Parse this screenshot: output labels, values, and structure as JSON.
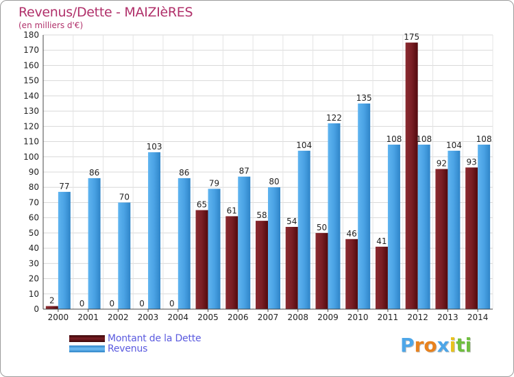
{
  "header": {
    "title": "Revenus/Dette - MAIZIèRES",
    "subtitle": "(en milliers d'€)"
  },
  "colors": {
    "dette": "#6b0f14",
    "revenus": "#4da6e8",
    "title": "#b0306a",
    "legend_text": "#5a5adf"
  },
  "legend": {
    "items": [
      {
        "label": "Montant de la Dette",
        "color": "#6b0f14"
      },
      {
        "label": "Revenus",
        "color": "#4da6e8"
      }
    ]
  },
  "logo": {
    "text": "Proxiti",
    "letters": [
      "P",
      "r",
      "o",
      "x",
      "i",
      "t",
      "i"
    ],
    "colors": [
      "#4da6e8",
      "#e8821e",
      "#e8821e",
      "#4da6e8",
      "#e8c21e",
      "#6fbf3f",
      "#6fbf3f"
    ]
  },
  "chart_data": {
    "type": "bar",
    "categories": [
      "2000",
      "2001",
      "2002",
      "2003",
      "2004",
      "2005",
      "2006",
      "2007",
      "2008",
      "2009",
      "2010",
      "2011",
      "2012",
      "2013",
      "2014"
    ],
    "series": [
      {
        "name": "Montant de la Dette",
        "values": [
          2,
          0,
          0,
          0,
          0,
          65,
          61,
          58,
          54,
          50,
          46,
          41,
          175,
          92,
          93
        ]
      },
      {
        "name": "Revenus",
        "values": [
          77,
          86,
          70,
          103,
          86,
          79,
          87,
          80,
          104,
          122,
          135,
          108,
          108,
          104,
          108
        ]
      }
    ],
    "ylim": [
      0,
      180
    ],
    "yticks": [
      0,
      10,
      20,
      30,
      40,
      50,
      60,
      70,
      80,
      90,
      100,
      110,
      120,
      130,
      140,
      150,
      160,
      170,
      180
    ],
    "grid": true
  }
}
